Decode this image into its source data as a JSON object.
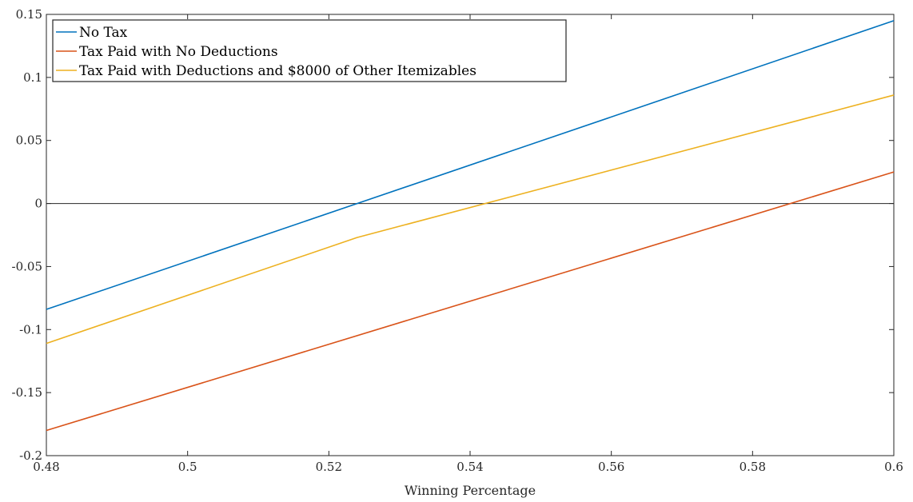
{
  "chart_data": {
    "type": "line",
    "title": "",
    "xlabel": "Winning Percentage",
    "ylabel": "",
    "xlim": [
      0.48,
      0.6
    ],
    "ylim": [
      -0.2,
      0.15
    ],
    "xticks": [
      0.48,
      0.5,
      0.52,
      0.54,
      0.56,
      0.58,
      0.6
    ],
    "xtick_labels": [
      "0.48",
      "0.5",
      "0.52",
      "0.54",
      "0.56",
      "0.58",
      "0.6"
    ],
    "yticks": [
      0.15,
      0.1,
      0.05,
      0,
      -0.05,
      -0.1,
      -0.15,
      -0.2
    ],
    "ytick_labels": [
      "0.15",
      "0.1",
      "0.05",
      "0",
      "-0.05",
      "-0.1",
      "-0.15",
      "-0.2"
    ],
    "grid": false,
    "legend_position": "top-left",
    "reference_line": {
      "y": 0,
      "color": "#262626"
    },
    "series": [
      {
        "name": "No Tax",
        "color": "#0072BD",
        "points": [
          [
            0.48,
            -0.084
          ],
          [
            0.6,
            0.145
          ]
        ]
      },
      {
        "name": "Tax Paid with No Deductions",
        "color": "#D95319",
        "points": [
          [
            0.48,
            -0.18
          ],
          [
            0.6,
            0.025
          ]
        ]
      },
      {
        "name": "Tax Paid with Deductions and $8000 of Other Itemizables",
        "color": "#EDB120",
        "points": [
          [
            0.48,
            -0.111
          ],
          [
            0.524,
            -0.027
          ],
          [
            0.6,
            0.086
          ]
        ]
      }
    ]
  }
}
